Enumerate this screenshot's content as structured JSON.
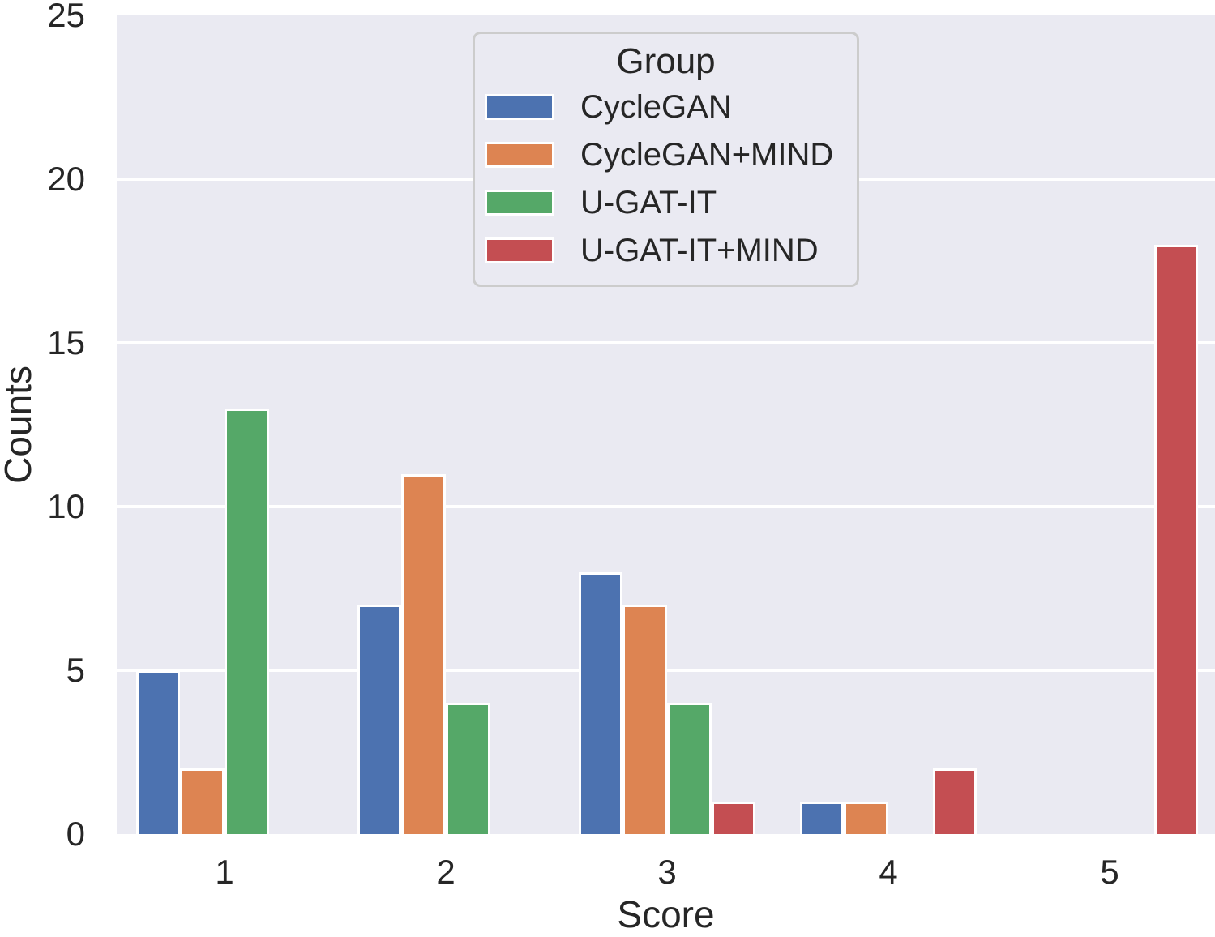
{
  "chart_data": {
    "type": "bar",
    "title": "",
    "xlabel": "Score",
    "ylabel": "Counts",
    "categories": [
      "1",
      "2",
      "3",
      "4",
      "5"
    ],
    "series": [
      {
        "name": "CycleGAN",
        "color": "#4c72b0",
        "values": [
          5,
          7,
          8,
          1,
          0
        ]
      },
      {
        "name": "CycleGAN+MIND",
        "color": "#dd8452",
        "values": [
          2,
          11,
          7,
          1,
          0
        ]
      },
      {
        "name": "U-GAT-IT",
        "color": "#55a868",
        "values": [
          13,
          4,
          4,
          0,
          0
        ]
      },
      {
        "name": "U-GAT-IT+MIND",
        "color": "#c44e52",
        "values": [
          0,
          0,
          1,
          2,
          18
        ]
      }
    ],
    "ylim": [
      0,
      25
    ],
    "yticks": [
      0,
      5,
      10,
      15,
      20,
      25
    ],
    "legend_title": "Group",
    "legend_position": "upper center",
    "grid": "horizontal",
    "plot_bg": "#eaeaf2",
    "grid_color": "#ffffff",
    "bar_edge_color": "#ffffff",
    "text_color": "#262626"
  }
}
